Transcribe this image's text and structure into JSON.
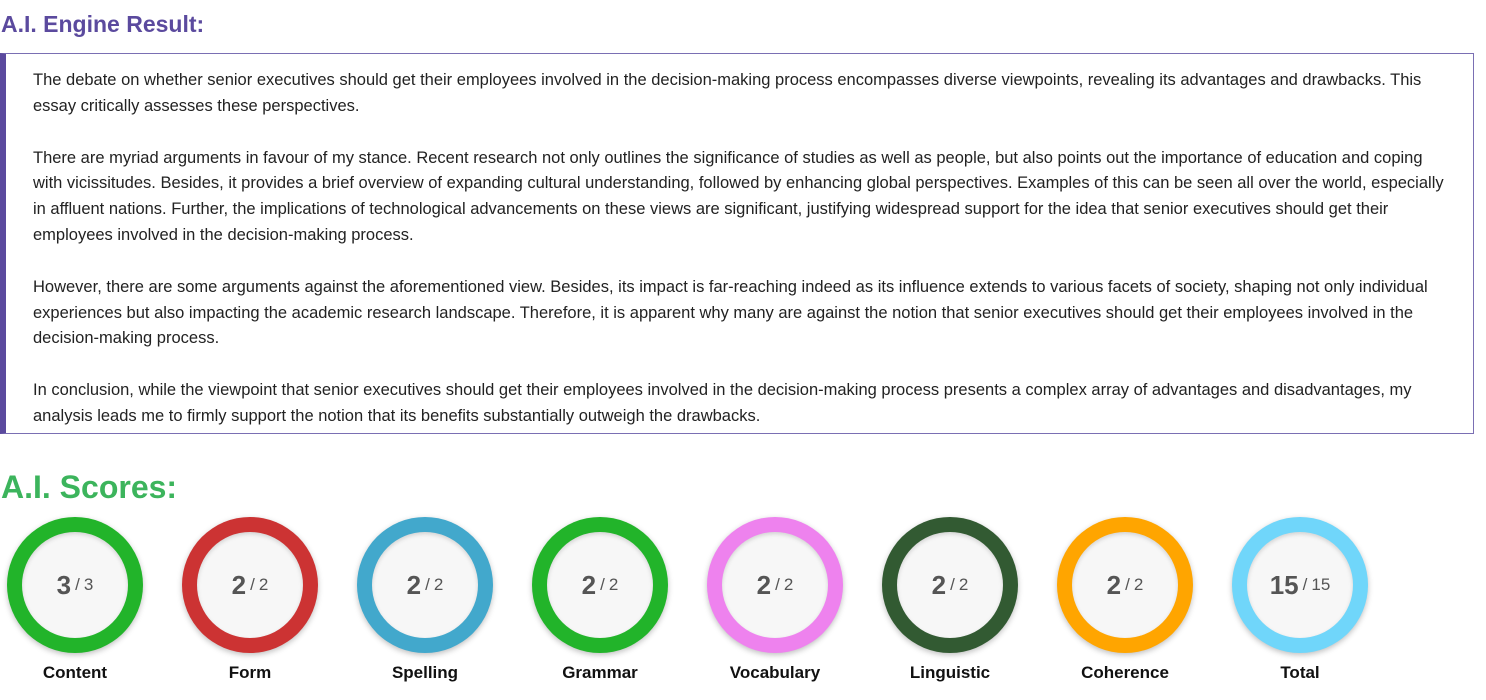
{
  "result": {
    "heading": "A.I. Engine Result:",
    "paragraphs": [
      "The debate on whether senior executives should get their employees involved in the decision-making process encompasses diverse viewpoints, revealing its advantages and drawbacks. This essay critically assesses these perspectives.",
      "There are myriad arguments in favour of my stance. Recent research not only outlines the significance of studies as well as people, but also points out the importance of education and coping with vicissitudes. Besides, it provides a brief overview of expanding cultural understanding, followed by enhancing global perspectives. Examples of this can be seen all over the world, especially in affluent nations. Further, the implications of technological advancements on these views are significant, justifying widespread support for the idea that senior executives should get their employees involved in the decision-making process.",
      "However, there are some arguments against the aforementioned view. Besides, its impact is far-reaching indeed as its influence extends to various facets of society, shaping not only individual experiences but also impacting the academic research landscape. Therefore, it is apparent why many are against the notion that senior executives should get their employees involved in the decision-making process.",
      "In conclusion, while the viewpoint that senior executives should get their employees involved in the decision-making process presents a complex array of advantages and disadvantages, my analysis leads me to firmly support the notion that its benefits substantially outweigh the drawbacks."
    ]
  },
  "scores": {
    "heading": "A.I. Scores:",
    "separator": "/",
    "items": [
      {
        "label": "Content",
        "value": "3",
        "max": "3",
        "color": "#22b42a"
      },
      {
        "label": "Form",
        "value": "2",
        "max": "2",
        "color": "#cc3333"
      },
      {
        "label": "Spelling",
        "value": "2",
        "max": "2",
        "color": "#42a8cc"
      },
      {
        "label": "Grammar",
        "value": "2",
        "max": "2",
        "color": "#22b42a"
      },
      {
        "label": "Vocabulary",
        "value": "2",
        "max": "2",
        "color": "#ee82ee"
      },
      {
        "label": "Linguistic",
        "value": "2",
        "max": "2",
        "color": "#325a32"
      },
      {
        "label": "Coherence",
        "value": "2",
        "max": "2",
        "color": "#ffa500"
      },
      {
        "label": "Total",
        "value": "15",
        "max": "15",
        "color": "#70d6fa"
      }
    ]
  }
}
